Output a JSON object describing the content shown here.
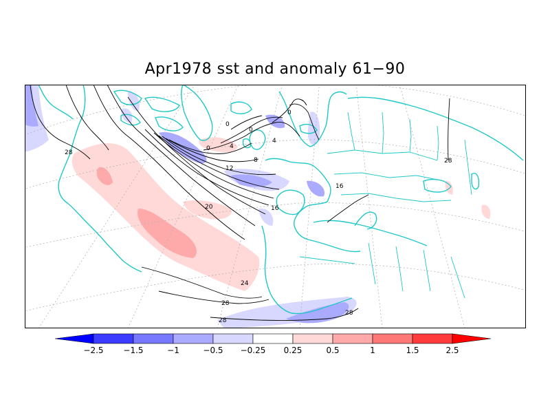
{
  "title": "Apr1978 sst and anomaly 61−90",
  "colors": {
    "coast": "#1ec8c8",
    "contour": "#000000",
    "grid": "#b4b4b4"
  },
  "contour_labels": [
    "0",
    "0",
    "0",
    "0",
    "4",
    "4",
    "8",
    "12",
    "16",
    "16",
    "20",
    "24",
    "28",
    "28",
    "28",
    "28",
    "28"
  ],
  "colorbar": {
    "labels": [
      "−2.5",
      "−1.5",
      "−1",
      "−0.5",
      "−0.25",
      "0.25",
      "0.5",
      "1",
      "1.5",
      "2.5"
    ],
    "colors": [
      "#0000ff",
      "#3c3cff",
      "#7878ff",
      "#aaaaff",
      "#d8d8ff",
      "#ffffff",
      "#ffd8d8",
      "#ffaaaa",
      "#ff7878",
      "#ff3c3c",
      "#ff0000"
    ]
  },
  "chart_data": {
    "type": "heatmap",
    "title": "Apr1978 sst and anomaly 61−90",
    "colorbar_levels": [
      -2.5,
      -1.5,
      -1,
      -0.5,
      -0.25,
      0.25,
      0.5,
      1,
      1.5,
      2.5
    ],
    "contour_levels_labeled": [
      0,
      4,
      8,
      12,
      16,
      20,
      24,
      28
    ]
  }
}
